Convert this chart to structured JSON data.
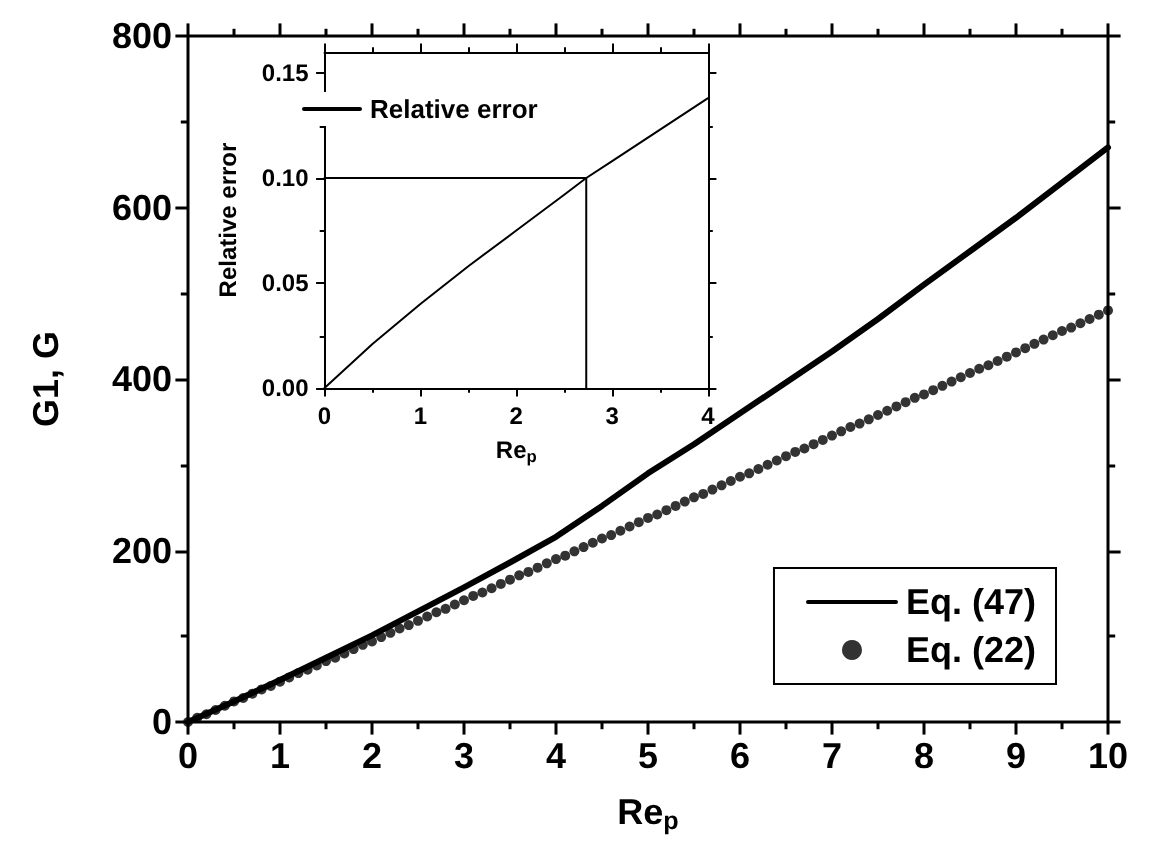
{
  "chart_data": [
    {
      "type": "line",
      "xlabel": "Re$_{p}$",
      "ylabel": "G1, G",
      "xlim": [
        0,
        10
      ],
      "xticks": [
        0,
        1,
        2,
        3,
        4,
        5,
        6,
        7,
        8,
        9,
        10
      ],
      "ylim": [
        0,
        800
      ],
      "yticks": [
        0,
        200,
        400,
        600,
        800
      ],
      "grid": false,
      "legend": "bottom right",
      "series": [
        {
          "name": "Eq. (47)",
          "type": "line",
          "color": "#000000",
          "marker": "none",
          "x": [
            0,
            0.5,
            1,
            1.5,
            2,
            2.5,
            3,
            3.5,
            4,
            4.5,
            5,
            5.5,
            6,
            6.5,
            7,
            7.5,
            8,
            8.5,
            9,
            9.5,
            10
          ],
          "values": [
            0,
            24,
            49,
            75,
            101,
            129,
            157,
            186,
            216,
            252,
            290,
            324,
            360,
            396,
            432,
            470,
            510,
            549,
            588,
            629,
            670
          ]
        },
        {
          "name": "Eq. (22)",
          "type": "scatter",
          "color": "#000000",
          "marker": "circle",
          "x": [
            0,
            0.1,
            0.2,
            0.3,
            0.4,
            0.5,
            0.6,
            0.7,
            0.8,
            0.9,
            1,
            1.1,
            1.2,
            1.3,
            1.4,
            1.5,
            1.6,
            1.7,
            1.8,
            1.9,
            2,
            2.1,
            2.2,
            2.3,
            2.4,
            2.5,
            2.6,
            2.7,
            2.8,
            2.9,
            3,
            3.1,
            3.2,
            3.3,
            3.4,
            3.5,
            3.6,
            3.7,
            3.8,
            3.9,
            4,
            4.1,
            4.2,
            4.3,
            4.4,
            4.5,
            4.6,
            4.7,
            4.8,
            4.9,
            5,
            5.1,
            5.2,
            5.3,
            5.4,
            5.5,
            5.6,
            5.7,
            5.8,
            5.9,
            6,
            6.1,
            6.2,
            6.3,
            6.4,
            6.5,
            6.6,
            6.7,
            6.8,
            6.9,
            7,
            7.1,
            7.2,
            7.3,
            7.4,
            7.5,
            7.6,
            7.7,
            7.8,
            7.9,
            8,
            8.1,
            8.2,
            8.3,
            8.4,
            8.5,
            8.6,
            8.7,
            8.8,
            8.9,
            9,
            9.1,
            9.2,
            9.3,
            9.4,
            9.5,
            9.6,
            9.7,
            9.8,
            9.9,
            10
          ],
          "values": [
            0,
            5,
            9,
            14,
            19,
            24,
            28,
            33,
            38,
            42,
            47,
            52,
            57,
            61,
            66,
            71,
            75,
            80,
            85,
            90,
            94,
            99,
            104,
            109,
            113,
            118,
            123,
            128,
            132,
            137,
            142,
            147,
            151,
            156,
            161,
            166,
            171,
            175,
            180,
            185,
            190,
            194,
            199,
            204,
            209,
            214,
            218,
            223,
            228,
            233,
            238,
            242,
            247,
            252,
            257,
            262,
            266,
            271,
            276,
            281,
            286,
            290,
            295,
            300,
            305,
            310,
            315,
            319,
            324,
            329,
            334,
            339,
            344,
            348,
            353,
            358,
            363,
            368,
            373,
            378,
            382,
            387,
            392,
            397,
            402,
            407,
            412,
            416,
            421,
            426,
            431,
            436,
            441,
            446,
            451,
            456,
            460,
            465,
            470,
            475,
            480
          ]
        }
      ]
    },
    {
      "type": "line",
      "xlabel": "Re$_{p}$",
      "ylabel": "Relative error",
      "xlim": [
        0,
        4
      ],
      "xticks": [
        0,
        1,
        2,
        3,
        4
      ],
      "ylim": [
        0,
        0.16
      ],
      "yticks": [
        {
          "value": 0,
          "label": "0.00"
        },
        {
          "value": 0.05,
          "label": "0.05"
        },
        {
          "value": 0.1,
          "label": "0.10"
        },
        0.15
      ],
      "grid": false,
      "legend": "top left",
      "series": [
        {
          "name": "Relative error",
          "type": "line",
          "color": "#000000",
          "marker": "none",
          "x": [
            0,
            0.5,
            1,
            1.5,
            2,
            2.5,
            2.73,
            3,
            3.5,
            4
          ],
          "values": [
            0,
            0.021,
            0.04,
            0.058,
            0.075,
            0.092,
            0.1,
            0.108,
            0.123,
            0.138
          ]
        },
        {
          "type": "line",
          "color": "#000000",
          "marker": "none",
          "x": [
            0,
            2.73,
            2.73
          ],
          "values": [
            0.1,
            0.1,
            0
          ]
        }
      ]
    }
  ]
}
